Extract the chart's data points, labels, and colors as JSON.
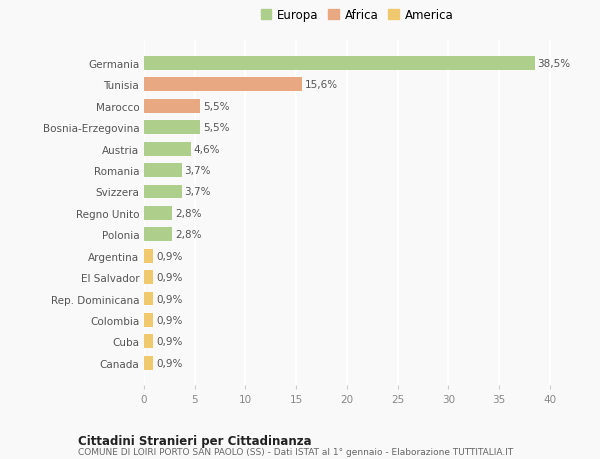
{
  "countries": [
    "Germania",
    "Tunisia",
    "Marocco",
    "Bosnia-Erzegovina",
    "Austria",
    "Romania",
    "Svizzera",
    "Regno Unito",
    "Polonia",
    "Argentina",
    "El Salvador",
    "Rep. Dominicana",
    "Colombia",
    "Cuba",
    "Canada"
  ],
  "values": [
    38.5,
    15.6,
    5.5,
    5.5,
    4.6,
    3.7,
    3.7,
    2.8,
    2.8,
    0.9,
    0.9,
    0.9,
    0.9,
    0.9,
    0.9
  ],
  "labels": [
    "38,5%",
    "15,6%",
    "5,5%",
    "5,5%",
    "4,6%",
    "3,7%",
    "3,7%",
    "2,8%",
    "2,8%",
    "0,9%",
    "0,9%",
    "0,9%",
    "0,9%",
    "0,9%",
    "0,9%"
  ],
  "categories": [
    "Europa",
    "Africa",
    "Africa",
    "Europa",
    "Europa",
    "Europa",
    "Europa",
    "Europa",
    "Europa",
    "America",
    "America",
    "America",
    "America",
    "America",
    "America"
  ],
  "colors": {
    "Europa": "#aecf8b",
    "Africa": "#e8a882",
    "America": "#f0c96e"
  },
  "legend_labels": [
    "Europa",
    "Africa",
    "America"
  ],
  "legend_colors": [
    "#aecf8b",
    "#e8a882",
    "#f0c96e"
  ],
  "title1": "Cittadini Stranieri per Cittadinanza",
  "title2": "COMUNE DI LOIRI PORTO SAN PAOLO (SS) - Dati ISTAT al 1° gennaio - Elaborazione TUTTITALIA.IT",
  "xlim": [
    0,
    42
  ],
  "xticks": [
    0,
    5,
    10,
    15,
    20,
    25,
    30,
    35,
    40
  ],
  "background_color": "#f9f9f9",
  "grid_color": "#ffffff"
}
